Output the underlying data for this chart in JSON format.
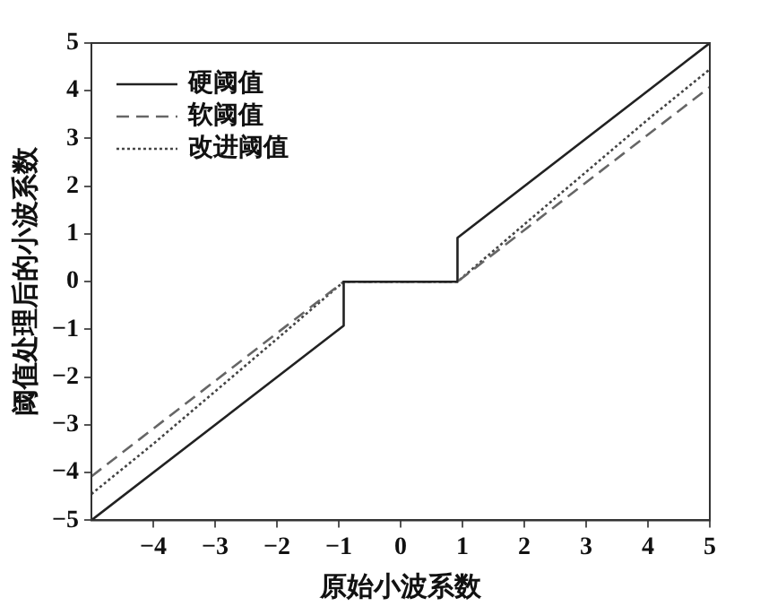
{
  "chart_data": {
    "type": "line",
    "xlabel": "原始小波系数",
    "ylabel": "阈值处理后的小波系数",
    "xlim": [
      -5,
      5
    ],
    "xticks": [
      -4,
      -3,
      -2,
      -1,
      0,
      1,
      2,
      3,
      4,
      5
    ],
    "ylim": [
      -5,
      5
    ],
    "yticks": [
      -5,
      -4,
      -3,
      -2,
      -1,
      0,
      1,
      2,
      3,
      4,
      5
    ],
    "grid": false,
    "legend": "top left",
    "marker": "none",
    "series": [
      {
        "name": "硬阈值",
        "color": "#222222",
        "line_style": "solid",
        "x": [
          -5,
          -0.92,
          -0.92,
          0.92,
          0.92,
          5
        ],
        "values": [
          -5,
          -0.92,
          0,
          0,
          0.92,
          5
        ]
      },
      {
        "name": "软阈值",
        "color": "#666666",
        "line_style": "dashed",
        "x": [
          -5,
          -0.92,
          0.92,
          5
        ],
        "values": [
          -4.08,
          0,
          0,
          4.08
        ]
      },
      {
        "name": "改进阈值",
        "color": "#444444",
        "line_style": "dotted",
        "x": [
          -5,
          -4,
          -3,
          -2,
          -0.92,
          0.92,
          2,
          3,
          4,
          5
        ],
        "values": [
          -4.45,
          -3.4,
          -2.3,
          -1.2,
          0,
          0,
          1.2,
          2.3,
          3.4,
          4.45
        ]
      }
    ]
  }
}
